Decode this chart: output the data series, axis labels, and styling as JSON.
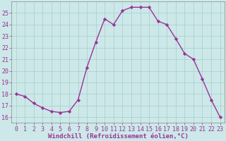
{
  "x": [
    0,
    1,
    2,
    3,
    4,
    5,
    6,
    7,
    8,
    9,
    10,
    11,
    12,
    13,
    14,
    15,
    16,
    17,
    18,
    19,
    20,
    21,
    22,
    23
  ],
  "y": [
    18.0,
    17.8,
    17.2,
    16.8,
    16.5,
    16.4,
    16.5,
    17.5,
    20.3,
    22.5,
    24.5,
    24.0,
    25.2,
    25.5,
    25.5,
    25.5,
    24.3,
    24.0,
    22.8,
    21.5,
    21.0,
    19.3,
    17.5,
    16.0
  ],
  "line_color": "#993399",
  "marker": "D",
  "marker_size": 2.2,
  "line_width": 1.0,
  "xlabel": "Windchill (Refroidissement éolien,°C)",
  "xlabel_fontsize": 6.5,
  "ylabel_ticks": [
    16,
    17,
    18,
    19,
    20,
    21,
    22,
    23,
    24,
    25
  ],
  "xlim": [
    -0.5,
    23.5
  ],
  "ylim": [
    15.5,
    26.0
  ],
  "bg_color": "#cce8e8",
  "grid_color": "#aacccc",
  "tick_fontsize": 6.0,
  "xtick_labels": [
    "0",
    "1",
    "2",
    "3",
    "4",
    "5",
    "6",
    "7",
    "8",
    "9",
    "10",
    "11",
    "12",
    "13",
    "14",
    "15",
    "16",
    "17",
    "18",
    "19",
    "20",
    "21",
    "22",
    "23"
  ]
}
